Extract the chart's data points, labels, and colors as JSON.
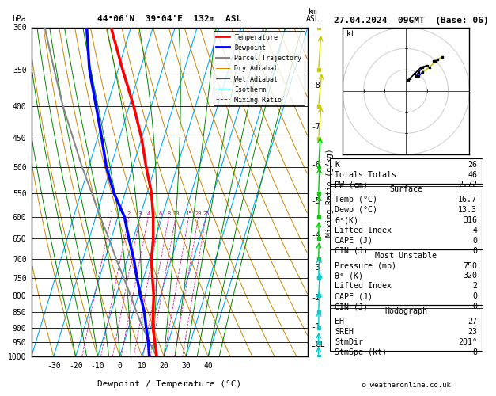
{
  "title_left": "44°06'N  39°04'E  132m  ASL",
  "title_right": "27.04.2024  09GMT  (Base: 06)",
  "xlabel": "Dewpoint / Temperature (°C)",
  "pressure_levels": [
    300,
    350,
    400,
    450,
    500,
    550,
    600,
    650,
    700,
    750,
    800,
    850,
    900,
    950,
    1000
  ],
  "p_min": 300,
  "p_max": 1000,
  "t_min": -40,
  "t_max": 40,
  "skew_factor": 45,
  "isotherm_color": "#00AAFF",
  "dry_adiabat_color": "#CC8800",
  "wet_adiabat_color": "#008800",
  "mixing_ratio_color": "#CC0088",
  "temp_color": "#FF0000",
  "dewpoint_color": "#0000FF",
  "parcel_color": "#888888",
  "mixing_ratio_values": [
    1,
    2,
    3,
    4,
    6,
    8,
    10,
    15,
    20,
    25
  ],
  "km_labels": [
    1,
    2,
    3,
    4,
    5,
    6,
    7,
    8
  ],
  "km_pressures": [
    895,
    805,
    720,
    640,
    565,
    495,
    430,
    370
  ],
  "temperature_profile": {
    "pressure": [
      1000,
      950,
      900,
      850,
      800,
      750,
      700,
      650,
      600,
      550,
      500,
      450,
      400,
      350,
      300
    ],
    "temp": [
      16.7,
      14,
      11,
      9,
      7,
      4,
      1,
      -1,
      -4,
      -8,
      -14,
      -20,
      -28,
      -38,
      -49
    ]
  },
  "dewpoint_profile": {
    "pressure": [
      1000,
      950,
      900,
      850,
      800,
      750,
      700,
      650,
      600,
      550,
      500,
      450,
      400,
      350,
      300
    ],
    "temp": [
      13.3,
      11,
      8,
      5,
      1,
      -3,
      -7,
      -12,
      -17,
      -25,
      -32,
      -38,
      -45,
      -53,
      -60
    ]
  },
  "parcel_profile": {
    "pressure": [
      1000,
      950,
      900,
      850,
      800,
      750,
      700,
      650,
      600,
      550,
      500,
      450,
      400,
      350,
      300
    ],
    "temp": [
      16.7,
      11.5,
      6.5,
      1.5,
      -3.5,
      -9,
      -15,
      -21,
      -28,
      -35,
      -43,
      -51,
      -60,
      -69,
      -79
    ]
  },
  "lcl_pressure": 955,
  "legend_entries": [
    {
      "label": "Temperature",
      "color": "#FF0000",
      "lw": 2,
      "ls": "-"
    },
    {
      "label": "Dewpoint",
      "color": "#0000FF",
      "lw": 2,
      "ls": "-"
    },
    {
      "label": "Parcel Trajectory",
      "color": "#888888",
      "lw": 1.5,
      "ls": "-"
    },
    {
      "label": "Dry Adiabat",
      "color": "#CC8800",
      "lw": 0.8,
      "ls": "-"
    },
    {
      "label": "Wet Adiabat",
      "color": "#008800",
      "lw": 0.8,
      "ls": "-"
    },
    {
      "label": "Isotherm",
      "color": "#00AAFF",
      "lw": 0.8,
      "ls": "-"
    },
    {
      "label": "Mixing Ratio",
      "color": "#CC0088",
      "lw": 0.7,
      "ls": "--"
    }
  ],
  "stats": {
    "K": "26",
    "Totals Totals": "46",
    "PW (cm)": "2.72",
    "surf_temp": "16.7",
    "surf_dewp": "13.3",
    "surf_theta": "316",
    "surf_li": "4",
    "surf_cape": "0",
    "surf_cin": "0",
    "mu_pres": "750",
    "mu_theta": "320",
    "mu_li": "2",
    "mu_cape": "0",
    "mu_cin": "0",
    "hodo_eh": "27",
    "hodo_sreh": "23",
    "hodo_stmdir": "201°",
    "hodo_stmspd": "8"
  },
  "copyright": "© weatheronline.co.uk",
  "wind_colors": {
    "low": "#00CCCC",
    "mid": "#00CC00",
    "high": "#CCCC00"
  },
  "wind_barbs": {
    "pressure": [
      1000,
      950,
      900,
      850,
      800,
      750,
      700,
      650,
      600,
      550,
      500,
      450,
      400,
      350,
      300
    ],
    "speed_kt": [
      5,
      5,
      8,
      10,
      12,
      10,
      8,
      8,
      10,
      12,
      15,
      18,
      20,
      18,
      15
    ],
    "dir_deg": [
      180,
      185,
      190,
      200,
      210,
      200,
      195,
      190,
      195,
      200,
      210,
      220,
      225,
      215,
      210
    ]
  },
  "hodograph": {
    "u": [
      0.5,
      1.0,
      2.0,
      3.5,
      5.0,
      4.0,
      3.0,
      2.5,
      3.0,
      4.0,
      5.5,
      7.0,
      8.5,
      7.5,
      6.5
    ],
    "v": [
      2.5,
      3.0,
      4.0,
      5.5,
      6.0,
      5.5,
      4.5,
      3.5,
      3.5,
      4.5,
      5.5,
      7.0,
      8.0,
      7.5,
      7.0
    ],
    "split": [
      5,
      9
    ]
  }
}
